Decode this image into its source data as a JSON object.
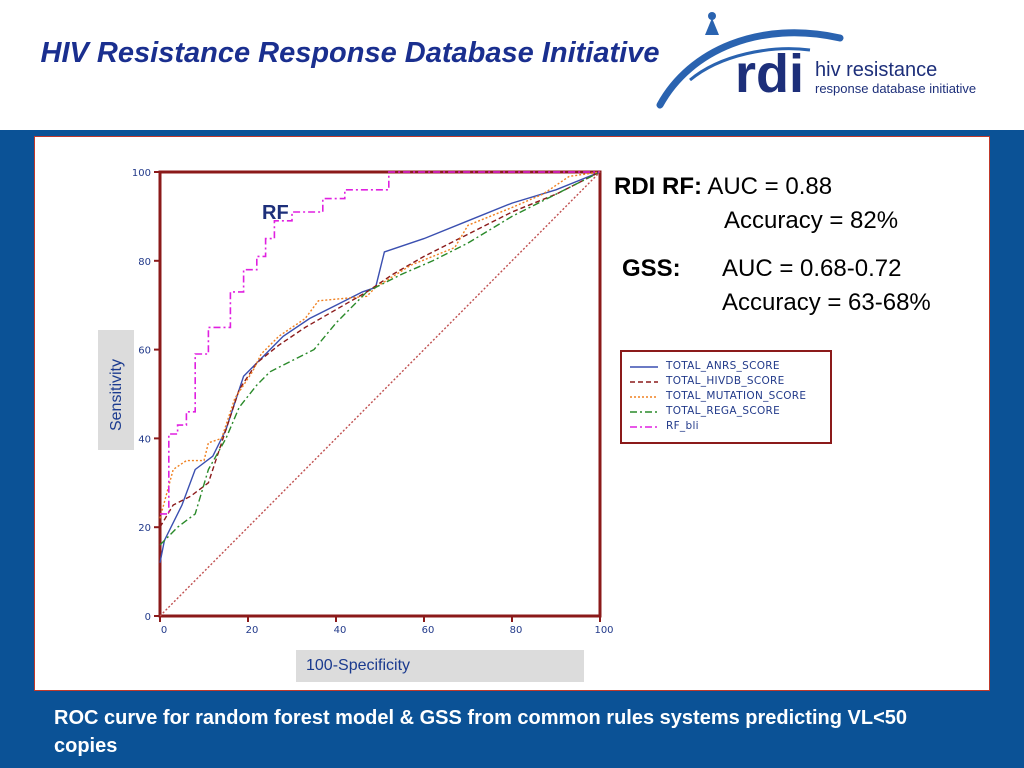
{
  "header": {
    "title": "HIV Resistance Response Database Initiative",
    "logo": {
      "mark_text": "rdi",
      "line1": "hiv resistance",
      "line2": "response database initiative"
    }
  },
  "stats": {
    "rdi_label": "RDI RF:",
    "rdi_auc": "AUC = 0.88",
    "rdi_accuracy": "Accuracy = 82%",
    "gss_label": "GSS:",
    "gss_auc": "AUC = 0.68-0.72",
    "gss_accuracy": "Accuracy = 63-68%"
  },
  "caption": "ROC curve for random forest model & GSS from common rules systems predicting VL<50 copies",
  "colors": {
    "background": "#0b5296",
    "title": "#1a2f8f",
    "axes": "#8b1a1a",
    "legend_text": "#223a8a"
  },
  "chart_data": {
    "type": "line",
    "xlabel": "100-Specificity",
    "ylabel": "Sensitivity",
    "xlim": [
      0,
      100
    ],
    "ylim": [
      0,
      100
    ],
    "xticks": [
      0,
      20,
      40,
      60,
      80,
      100
    ],
    "yticks": [
      0,
      20,
      40,
      60,
      80,
      100
    ],
    "grid": false,
    "annotation": "RF",
    "legend_position": "right",
    "series": [
      {
        "name": "TOTAL_ANRS_SCORE",
        "color": "#3a4fb0",
        "style": "solid",
        "points": [
          [
            0,
            12
          ],
          [
            1,
            17
          ],
          [
            5,
            25
          ],
          [
            8,
            33
          ],
          [
            12,
            36
          ],
          [
            15,
            42
          ],
          [
            19,
            54
          ],
          [
            23,
            58
          ],
          [
            28,
            63
          ],
          [
            34,
            67
          ],
          [
            40,
            70
          ],
          [
            46,
            73
          ],
          [
            49,
            74
          ],
          [
            51,
            82
          ],
          [
            60,
            85
          ],
          [
            70,
            89
          ],
          [
            80,
            93
          ],
          [
            90,
            96
          ],
          [
            100,
            100
          ]
        ]
      },
      {
        "name": "TOTAL_HIVDB_SCORE",
        "color": "#8b1a1a",
        "style": "dashed",
        "points": [
          [
            0,
            20
          ],
          [
            3,
            25
          ],
          [
            7,
            27
          ],
          [
            11,
            30
          ],
          [
            15,
            42
          ],
          [
            18,
            51
          ],
          [
            22,
            57
          ],
          [
            27,
            61
          ],
          [
            33,
            65
          ],
          [
            40,
            69
          ],
          [
            47,
            73
          ],
          [
            53,
            77
          ],
          [
            60,
            81
          ],
          [
            70,
            86
          ],
          [
            80,
            91
          ],
          [
            90,
            95
          ],
          [
            100,
            100
          ]
        ]
      },
      {
        "name": "TOTAL_MUTATION_SCORE",
        "color": "#f08020",
        "style": "dotted",
        "points": [
          [
            0,
            22
          ],
          [
            3,
            33
          ],
          [
            6,
            35
          ],
          [
            10,
            35
          ],
          [
            11,
            39
          ],
          [
            14,
            40
          ],
          [
            17,
            49
          ],
          [
            19,
            52
          ],
          [
            21,
            55
          ],
          [
            23,
            59
          ],
          [
            27,
            63
          ],
          [
            33,
            67
          ],
          [
            36,
            71
          ],
          [
            47,
            72
          ],
          [
            49,
            74
          ],
          [
            57,
            79
          ],
          [
            62,
            81
          ],
          [
            67,
            83
          ],
          [
            70,
            88
          ],
          [
            80,
            92
          ],
          [
            87,
            95
          ],
          [
            93,
            99
          ],
          [
            100,
            100
          ]
        ]
      },
      {
        "name": "TOTAL_REGA_SCORE",
        "color": "#2a8a2a",
        "style": "dashdot",
        "points": [
          [
            0,
            16
          ],
          [
            4,
            20
          ],
          [
            8,
            23
          ],
          [
            11,
            33
          ],
          [
            15,
            40
          ],
          [
            18,
            47
          ],
          [
            22,
            52
          ],
          [
            25,
            55
          ],
          [
            35,
            60
          ],
          [
            40,
            66
          ],
          [
            47,
            73
          ],
          [
            55,
            77
          ],
          [
            62,
            80
          ],
          [
            70,
            84
          ],
          [
            80,
            90
          ],
          [
            90,
            95
          ],
          [
            100,
            100
          ]
        ]
      },
      {
        "name": "RF_bli",
        "color": "#e020e0",
        "style": "dashdot",
        "points": [
          [
            0,
            23
          ],
          [
            2,
            23
          ],
          [
            2,
            41
          ],
          [
            4,
            41
          ],
          [
            4,
            43
          ],
          [
            6,
            43
          ],
          [
            6,
            46
          ],
          [
            8,
            46
          ],
          [
            8,
            59
          ],
          [
            11,
            59
          ],
          [
            11,
            65
          ],
          [
            16,
            65
          ],
          [
            16,
            73
          ],
          [
            19,
            73
          ],
          [
            19,
            78
          ],
          [
            22,
            78
          ],
          [
            22,
            81
          ],
          [
            24,
            81
          ],
          [
            24,
            85
          ],
          [
            26,
            85
          ],
          [
            26,
            89
          ],
          [
            30,
            89
          ],
          [
            30,
            91
          ],
          [
            37,
            91
          ],
          [
            37,
            94
          ],
          [
            42,
            94
          ],
          [
            42,
            96
          ],
          [
            52,
            96
          ],
          [
            52,
            100
          ],
          [
            100,
            100
          ]
        ]
      },
      {
        "name": "",
        "color": "#c05050",
        "style": "dotted",
        "points": [
          [
            0,
            0
          ],
          [
            100,
            100
          ]
        ]
      }
    ]
  }
}
